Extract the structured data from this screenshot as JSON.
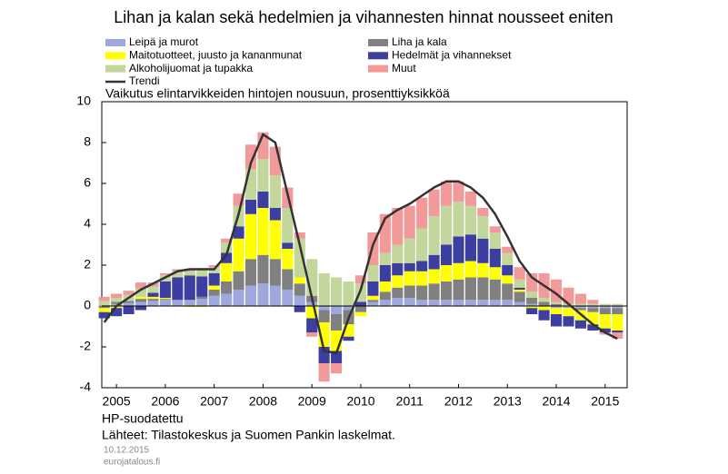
{
  "chart_data": {
    "type": "bar",
    "stacked": true,
    "title": "Lihan ja kalan sekä hedelmien ja vihannesten hinnat nousseet eniten",
    "subtitle": "Vaikutus elintarvikkeiden hintojen nousuun, prosenttiyksikköä",
    "notes": [
      "HP-suodatettu",
      "Lähteet: Tilastokeskus ja Suomen Pankin laskelmat."
    ],
    "date": "10.12.2015",
    "source_site": "eurojatalous.fi",
    "x": [
      2005.25,
      2005.5,
      2005.75,
      2006,
      2006.25,
      2006.5,
      2006.75,
      2007,
      2007.25,
      2007.5,
      2007.75,
      2008,
      2008.25,
      2008.5,
      2008.75,
      2009,
      2009.25,
      2009.5,
      2009.75,
      2010,
      2010.25,
      2010.5,
      2010.75,
      2011,
      2011.25,
      2011.5,
      2011.75,
      2012,
      2012.25,
      2012.5,
      2012.75,
      2013,
      2013.25,
      2013.5,
      2013.75,
      2014,
      2014.25,
      2014.5,
      2014.75,
      2015,
      2015.25,
      2015.5,
      2015.75
    ],
    "xlim": [
      2005.2,
      2015.95
    ],
    "xticks": [
      {
        "value": 2005.5,
        "label": "2005"
      },
      {
        "value": 2006.5,
        "label": "2006"
      },
      {
        "value": 2007.5,
        "label": "2007"
      },
      {
        "value": 2008.5,
        "label": "2008"
      },
      {
        "value": 2009.5,
        "label": "2009"
      },
      {
        "value": 2010.5,
        "label": "2010"
      },
      {
        "value": 2011.5,
        "label": "2011"
      },
      {
        "value": 2012.5,
        "label": "2012"
      },
      {
        "value": 2013.5,
        "label": "2013"
      },
      {
        "value": 2014.5,
        "label": "2014"
      },
      {
        "value": 2015.5,
        "label": "2015"
      }
    ],
    "ylim": [
      -4,
      10
    ],
    "yticks": [
      -4,
      -2,
      0,
      2,
      4,
      6,
      8,
      10
    ],
    "grid": false,
    "series": [
      {
        "name": "Leipä ja murot",
        "color": "#9fa8dc",
        "values": [
          0.05,
          0.1,
          0.15,
          0.2,
          0.25,
          0.3,
          0.3,
          0.3,
          0.35,
          0.5,
          0.6,
          0.8,
          1.0,
          1.1,
          1.0,
          0.8,
          0.5,
          0.2,
          -0.2,
          -0.4,
          -0.2,
          0.0,
          0.2,
          0.3,
          0.4,
          0.4,
          0.3,
          0.3,
          0.3,
          0.3,
          0.3,
          0.3,
          0.3,
          0.3,
          0.2,
          0.1,
          0.0,
          -0.1,
          -0.1,
          -0.1,
          -0.1,
          -0.1,
          -0.1
        ]
      },
      {
        "name": "Liha ja kala",
        "color": "#808080",
        "values": [
          -0.1,
          0.1,
          0.1,
          0.15,
          0.1,
          0.05,
          0.0,
          0.0,
          0.1,
          0.3,
          0.6,
          0.9,
          1.3,
          1.4,
          1.3,
          1.0,
          0.6,
          0.3,
          -0.6,
          -0.8,
          -0.7,
          -0.3,
          0.1,
          0.4,
          0.5,
          0.6,
          0.7,
          0.8,
          0.9,
          1.0,
          1.1,
          1.1,
          1.0,
          0.8,
          0.5,
          0.3,
          0.2,
          0.1,
          0.0,
          -0.1,
          -0.2,
          -0.3,
          -0.3
        ]
      },
      {
        "name": "Maitotuotteet, juusto ja kananmunat",
        "color": "#ffff00",
        "values": [
          -0.2,
          -0.1,
          0.0,
          0.1,
          0.1,
          0.05,
          0.0,
          -0.05,
          -0.05,
          0.2,
          0.9,
          1.6,
          2.2,
          2.3,
          1.9,
          1.0,
          0.3,
          -0.6,
          -1.2,
          -1.0,
          -0.6,
          -0.2,
          0.2,
          0.5,
          0.6,
          0.7,
          0.7,
          0.7,
          0.8,
          0.8,
          0.8,
          0.7,
          0.6,
          0.4,
          0.1,
          -0.1,
          -0.2,
          -0.3,
          -0.4,
          -0.5,
          -0.6,
          -0.7,
          -0.8
        ]
      },
      {
        "name": "Hedelmät ja vihannekset",
        "color": "#3c3fa0",
        "values": [
          -0.3,
          -0.4,
          -0.4,
          -0.2,
          0.2,
          0.8,
          1.1,
          1.2,
          1.0,
          0.6,
          0.5,
          0.6,
          0.7,
          0.8,
          0.6,
          0.3,
          -0.3,
          -0.7,
          -0.8,
          -0.6,
          -0.2,
          0.2,
          0.7,
          0.8,
          0.6,
          0.4,
          0.5,
          0.7,
          1.0,
          1.3,
          1.3,
          1.2,
          0.9,
          0.5,
          0.1,
          -0.3,
          -0.5,
          -0.6,
          -0.5,
          -0.4,
          -0.3,
          -0.2,
          -0.1
        ]
      },
      {
        "name": "Alkoholijuomat ja tupakka",
        "color": "#c3d69b",
        "values": [
          0.2,
          0.2,
          0.3,
          0.4,
          0.3,
          0.3,
          0.3,
          0.2,
          0.3,
          0.3,
          0.5,
          1.0,
          1.5,
          1.6,
          1.6,
          1.7,
          1.9,
          1.8,
          1.6,
          1.4,
          1.2,
          0.9,
          0.8,
          0.6,
          0.9,
          1.2,
          1.6,
          1.9,
          1.9,
          1.7,
          1.4,
          1.1,
          0.8,
          0.6,
          0.4,
          0.3,
          0.2,
          0.1,
          0.1,
          0.1,
          0.1,
          0.1,
          0.1
        ]
      },
      {
        "name": "Muut",
        "color": "#f29a9a",
        "values": [
          0.2,
          0.2,
          0.2,
          0.3,
          0.2,
          0.1,
          0.1,
          0.1,
          0.1,
          0.1,
          0.2,
          0.6,
          1.2,
          1.3,
          1.4,
          1.0,
          0.3,
          -0.2,
          -0.9,
          -0.5,
          0.0,
          0.4,
          1.6,
          1.9,
          1.8,
          1.6,
          1.5,
          1.3,
          1.2,
          1.0,
          0.7,
          0.4,
          0.3,
          0.3,
          0.6,
          0.9,
          1.2,
          1.1,
          0.8,
          0.5,
          0.2,
          -0.1,
          -0.3
        ]
      },
      {
        "name": "Trendi",
        "type": "line",
        "color": "#333333",
        "values": [
          -0.8,
          0.0,
          0.4,
          0.8,
          1.1,
          1.4,
          1.7,
          1.8,
          1.8,
          1.8,
          2.5,
          4.5,
          7.0,
          8.4,
          8.0,
          5.5,
          3.0,
          0.4,
          -2.2,
          -2.3,
          -0.6,
          0.8,
          3.0,
          4.3,
          4.7,
          5.0,
          5.4,
          5.8,
          6.1,
          6.1,
          5.8,
          5.3,
          4.5,
          3.4,
          2.2,
          1.4,
          1.0,
          0.6,
          0.1,
          -0.4,
          -0.9,
          -1.3,
          -1.6
        ]
      }
    ]
  }
}
